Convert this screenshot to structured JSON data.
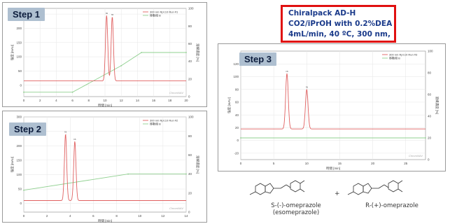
{
  "chart_data": [
    {
      "type": "line",
      "step_label": "Step 1",
      "legend": [
        "300 nm Rpt.10 Run #1",
        "移動相 B"
      ],
      "xlabel": "時間 [min]",
      "ylabel": "強度 [mAU]",
      "y2label": "溶媒濃度 [%]",
      "xlim": [
        0,
        20
      ],
      "ylim": [
        -40,
        270
      ],
      "y2lim": [
        0,
        100
      ],
      "x_ticks": [
        0,
        2,
        4,
        6,
        8,
        10,
        12,
        14,
        16,
        18,
        20
      ],
      "y_ticks": [
        0,
        50,
        100,
        150,
        200,
        250
      ],
      "y2_ticks": [
        0,
        20,
        40,
        60,
        80,
        100
      ],
      "peaks": [
        {
          "label": "ra",
          "x": 10.2,
          "y": 245
        },
        {
          "label": "ra",
          "x": 10.9,
          "y": 240
        }
      ],
      "baseline_y": 15,
      "gradient_B": {
        "x": [
          0,
          6,
          12,
          14.5,
          20
        ],
        "y": [
          5,
          5,
          35,
          50,
          50
        ]
      },
      "watermark": "ChromNAV"
    },
    {
      "type": "line",
      "step_label": "Step 2",
      "legend": [
        "300 nm Rpt.10 Run #2",
        "移動相 B"
      ],
      "xlabel": "時間 [min]",
      "ylabel": "強度 [mAU]",
      "y2label": "溶媒濃度 [%]",
      "xlim": [
        0,
        14
      ],
      "ylim": [
        -30,
        300
      ],
      "y2lim": [
        0,
        100
      ],
      "x_ticks": [
        0,
        2,
        4,
        6,
        8,
        10,
        12,
        14
      ],
      "y_ticks": [
        0,
        50,
        100,
        150,
        200,
        250,
        300
      ],
      "y2_ticks": [
        0,
        20,
        40,
        60,
        80,
        100
      ],
      "peaks": [
        {
          "label": "ra",
          "x": 3.6,
          "y": 240
        },
        {
          "label": "ra",
          "x": 4.4,
          "y": 215
        }
      ],
      "baseline_y": 10,
      "gradient_B": {
        "x": [
          0,
          9,
          14
        ],
        "y": [
          23,
          40,
          40
        ]
      },
      "watermark": "ChromNAV"
    },
    {
      "type": "line",
      "step_label": "Step 3",
      "legend": [
        "300 nm Rpt.10 Run #3",
        "移動相 B"
      ],
      "xlabel": "時間 [min]",
      "ylabel": "強度 [mAU]",
      "y2label": "溶媒濃度 [%]",
      "xlim": [
        0,
        28
      ],
      "ylim": [
        -30,
        140
      ],
      "y2lim": [
        0,
        100
      ],
      "x_ticks": [
        0,
        5,
        10,
        15,
        20,
        25
      ],
      "y_ticks": [
        -20,
        0,
        20,
        40,
        60,
        80,
        100,
        120
      ],
      "y2_ticks": [
        0,
        20,
        40,
        60,
        80,
        100
      ],
      "peaks": [
        {
          "label": "ra",
          "x": 7.0,
          "y": 105
        },
        {
          "label": "ra",
          "x": 10.0,
          "y": 80
        }
      ],
      "baseline_y": 18,
      "gradient_B": {
        "x": [
          0,
          28
        ],
        "y": [
          20,
          20
        ]
      },
      "watermark": "ChromNAV"
    }
  ],
  "conditions": {
    "line1": "Chiralpack AD-H",
    "line2": "CO2/iPrOH with 0.2%DEA",
    "line3": "4mL/min, 40 ºC, 300 nm,"
  },
  "compounds": {
    "left_line1": "S-(-)-omeprazole",
    "left_line2": "(esomeprazole)",
    "plus": "+",
    "right_line1": "R-(+)-omeprazole"
  },
  "colors": {
    "trace": "#e06060",
    "gradient": "#90d090",
    "box_border": "#e01010",
    "box_text": "#1a3a8a",
    "step_tag_bg": "#aebfd0"
  }
}
